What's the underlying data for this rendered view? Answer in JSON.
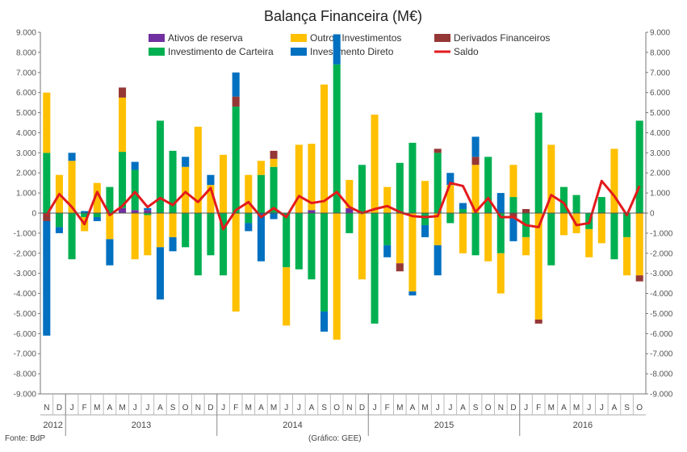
{
  "chart_data": {
    "type": "bar",
    "subtype": "stacked-bar-with-line",
    "title": "Balança Financeira (M€)",
    "ylim": [
      -9000,
      9000
    ],
    "ytick_step": 1000,
    "grid": false,
    "legend_position": "top",
    "months": [
      "N",
      "D",
      "J",
      "F",
      "M",
      "A",
      "M",
      "J",
      "J",
      "A",
      "S",
      "O",
      "N",
      "D",
      "J",
      "F",
      "M",
      "A",
      "M",
      "J",
      "J",
      "A",
      "S",
      "O",
      "N",
      "D",
      "J",
      "F",
      "M",
      "A",
      "M",
      "J",
      "J",
      "A",
      "S",
      "O",
      "N",
      "D",
      "J",
      "F",
      "M",
      "A",
      "M",
      "J",
      "J",
      "A",
      "S",
      "O"
    ],
    "years": [
      {
        "label": "2012",
        "start": 0,
        "end": 1
      },
      {
        "label": "2013",
        "start": 2,
        "end": 13
      },
      {
        "label": "2014",
        "start": 14,
        "end": 25
      },
      {
        "label": "2015",
        "start": 26,
        "end": 37
      },
      {
        "label": "2016",
        "start": 38,
        "end": 47
      }
    ],
    "series": [
      {
        "name": "Ativos de reserva",
        "color": "#7030a0",
        "kind": "bar",
        "values": [
          0,
          0,
          0,
          0,
          0,
          0,
          250,
          150,
          150,
          0,
          0,
          0,
          0,
          0,
          0,
          0,
          0,
          0,
          0,
          0,
          0,
          150,
          0,
          0,
          250,
          0,
          0,
          0,
          0,
          0,
          0,
          0,
          0,
          0,
          0,
          0,
          0,
          0,
          0,
          0,
          0,
          0,
          0,
          0,
          0,
          0,
          0,
          0
        ]
      },
      {
        "name": "Investimento de Carteira",
        "color": "#00b050",
        "kind": "bar",
        "values": [
          3000,
          -700,
          -2300,
          -200,
          -200,
          1300,
          2800,
          2000,
          -100,
          4600,
          3100,
          -1700,
          -3100,
          -2100,
          -3100,
          5300,
          -500,
          1900,
          2300,
          -2700,
          -2800,
          -3300,
          -4900,
          7400,
          -1000,
          2400,
          -5500,
          -1600,
          2500,
          3500,
          -600,
          3000,
          -500,
          200,
          -2100,
          2800,
          -2000,
          800,
          -1200,
          5000,
          -2600,
          1300,
          900,
          -800,
          800,
          -2300,
          -1200,
          4600
        ]
      },
      {
        "name": "Outros Investimentos",
        "color": "#ffc000",
        "kind": "bar",
        "values": [
          3000,
          1900,
          2600,
          -700,
          1500,
          -1300,
          2700,
          -2300,
          -2000,
          -1700,
          -1200,
          2300,
          4300,
          1400,
          2900,
          -4900,
          1900,
          700,
          400,
          -2900,
          3400,
          3300,
          6400,
          -6300,
          1400,
          -3300,
          4900,
          1300,
          -2500,
          -3900,
          1600,
          -1600,
          1400,
          -2000,
          2400,
          -2400,
          -2000,
          1600,
          -900,
          -5300,
          3400,
          -1100,
          -1000,
          -1400,
          -1500,
          3200,
          -1900,
          -3100
        ]
      },
      {
        "name": "Derivados Financeiros",
        "color": "#953735",
        "kind": "bar",
        "values": [
          -400,
          0,
          0,
          0,
          0,
          0,
          500,
          0,
          0,
          0,
          0,
          0,
          0,
          0,
          0,
          500,
          0,
          0,
          400,
          0,
          0,
          0,
          0,
          0,
          0,
          0,
          0,
          0,
          -400,
          0,
          0,
          200,
          0,
          0,
          400,
          0,
          0,
          -200,
          200,
          -200,
          0,
          0,
          0,
          0,
          0,
          0,
          0,
          -300
        ]
      },
      {
        "name": "Investimento Direto",
        "color": "#0070c0",
        "kind": "bar",
        "values": [
          -5700,
          -300,
          400,
          100,
          -200,
          -1300,
          0,
          400,
          100,
          -2600,
          -700,
          500,
          0,
          500,
          0,
          1200,
          -400,
          -2400,
          -300,
          0,
          0,
          0,
          -1000,
          1500,
          0,
          0,
          0,
          -600,
          0,
          -200,
          -600,
          -1500,
          600,
          300,
          1000,
          0,
          1000,
          -1200,
          0,
          0,
          0,
          0,
          0,
          0,
          0,
          0,
          0,
          0
        ]
      },
      {
        "name": "Saldo",
        "color": "#e31a1c",
        "kind": "line",
        "values": [
          -100,
          950,
          300,
          -550,
          1050,
          -100,
          350,
          1050,
          300,
          750,
          400,
          1050,
          550,
          1250,
          -800,
          150,
          550,
          -200,
          250,
          -200,
          850,
          500,
          600,
          1050,
          300,
          0,
          200,
          350,
          50,
          -150,
          -200,
          -150,
          1500,
          1350,
          50,
          750,
          -200,
          -200,
          -600,
          -700,
          900,
          500,
          -600,
          -500,
          1600,
          850,
          -100,
          1350
        ]
      }
    ]
  },
  "labels": {
    "y_ticks": [
      "9.000",
      "8.000",
      "7.000",
      "6.000",
      "5.000",
      "4.000",
      "3.000",
      "2.000",
      "1.000",
      "0",
      "-1.000",
      "-2.000",
      "-3.000",
      "-4.000",
      "-5.000",
      "-6.000",
      "-7.000",
      "-8.000",
      "-9.000"
    ],
    "source": "Fonte: BdP",
    "credit": "(Gráfico: GEE)"
  }
}
